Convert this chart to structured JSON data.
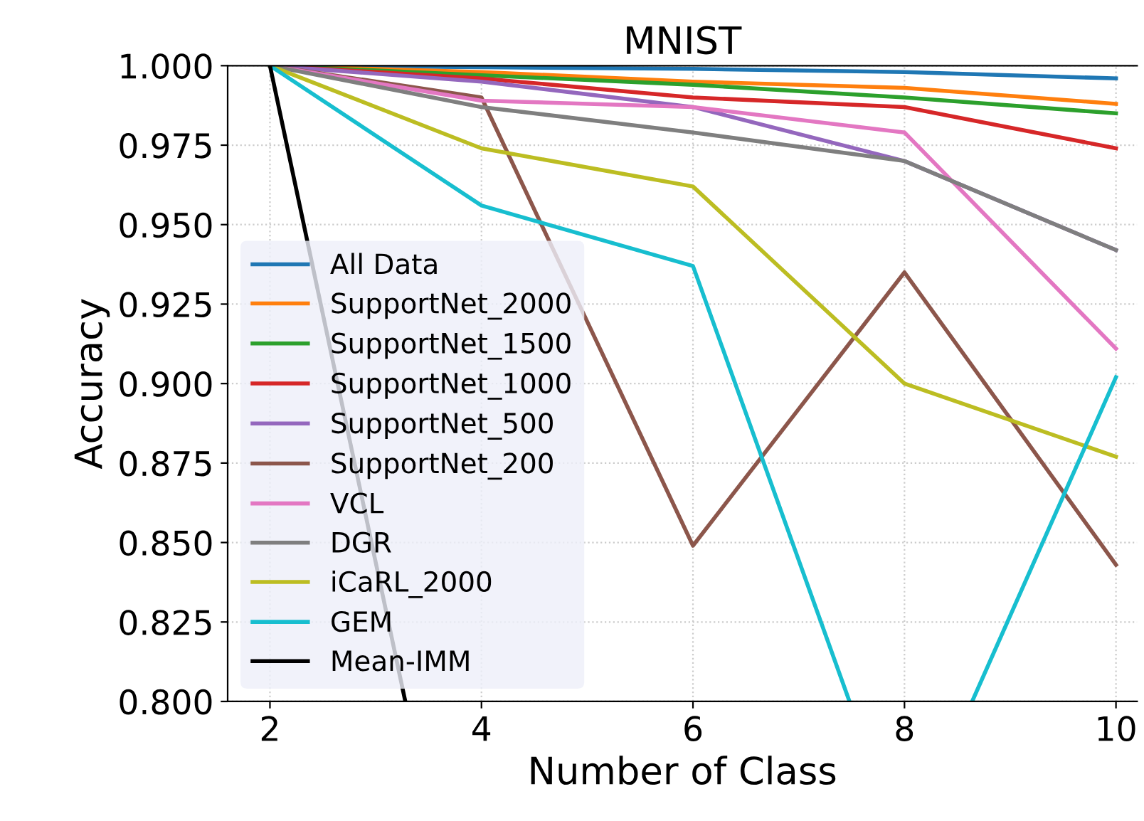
{
  "chart_data": {
    "type": "line",
    "title": "MNIST",
    "xlabel": "Number of Class",
    "ylabel": "Accuracy",
    "x": [
      2,
      4,
      6,
      8,
      10
    ],
    "series": [
      {
        "name": "All Data",
        "color": "#1f77b4",
        "values": [
          1.0,
          0.9995,
          0.999,
          0.998,
          0.996
        ]
      },
      {
        "name": "SupportNet_2000",
        "color": "#ff7f0e",
        "values": [
          1.0,
          0.998,
          0.995,
          0.993,
          0.988
        ]
      },
      {
        "name": "SupportNet_1500",
        "color": "#2ca02c",
        "values": [
          1.0,
          0.997,
          0.994,
          0.99,
          0.985
        ]
      },
      {
        "name": "SupportNet_1000",
        "color": "#d62728",
        "values": [
          1.0,
          0.996,
          0.99,
          0.987,
          0.974
        ]
      },
      {
        "name": "SupportNet_500",
        "color": "#9467bd",
        "values": [
          1.0,
          0.995,
          0.987,
          0.97,
          0.942
        ]
      },
      {
        "name": "SupportNet_200",
        "color": "#8c564b",
        "values": [
          1.0,
          0.99,
          0.849,
          0.935,
          0.843
        ]
      },
      {
        "name": "VCL",
        "color": "#e377c2",
        "values": [
          1.0,
          0.989,
          0.987,
          0.979,
          0.911
        ]
      },
      {
        "name": "DGR",
        "color": "#7f7f7f",
        "values": [
          1.0,
          0.987,
          0.979,
          0.97,
          0.942
        ]
      },
      {
        "name": "iCaRL_2000",
        "color": "#bcbd22",
        "values": [
          1.0,
          0.974,
          0.962,
          0.9,
          0.877
        ]
      },
      {
        "name": "GEM",
        "color": "#17becf",
        "x": [
          2,
          4,
          6,
          7.48,
          8,
          8.64,
          10
        ],
        "values": [
          1.0,
          0.956,
          0.937,
          0.8,
          null,
          0.8,
          0.902
        ]
      },
      {
        "name": "Mean-IMM",
        "color": "#000000",
        "x": [
          2,
          3.28
        ],
        "values": [
          1.0,
          0.8
        ]
      }
    ],
    "xlim": [
      1.6,
      10.2
    ],
    "ylim": [
      0.8,
      1.0
    ],
    "xticks": [
      2,
      4,
      6,
      8,
      10
    ],
    "yticks": [
      {
        "value": 0.8,
        "label": "0.800"
      },
      {
        "value": 0.825,
        "label": "0.825"
      },
      {
        "value": 0.85,
        "label": "0.850"
      },
      {
        "value": 0.875,
        "label": "0.875"
      },
      {
        "value": 0.9,
        "label": "0.900"
      },
      {
        "value": 0.925,
        "label": "0.925"
      },
      {
        "value": 0.95,
        "label": "0.950"
      },
      {
        "value": 0.975,
        "label": "0.975"
      },
      {
        "value": 1.0,
        "label": "1.000"
      }
    ],
    "grid": true,
    "legend": "bottom left",
    "marker": "none",
    "line_style": "solid"
  }
}
